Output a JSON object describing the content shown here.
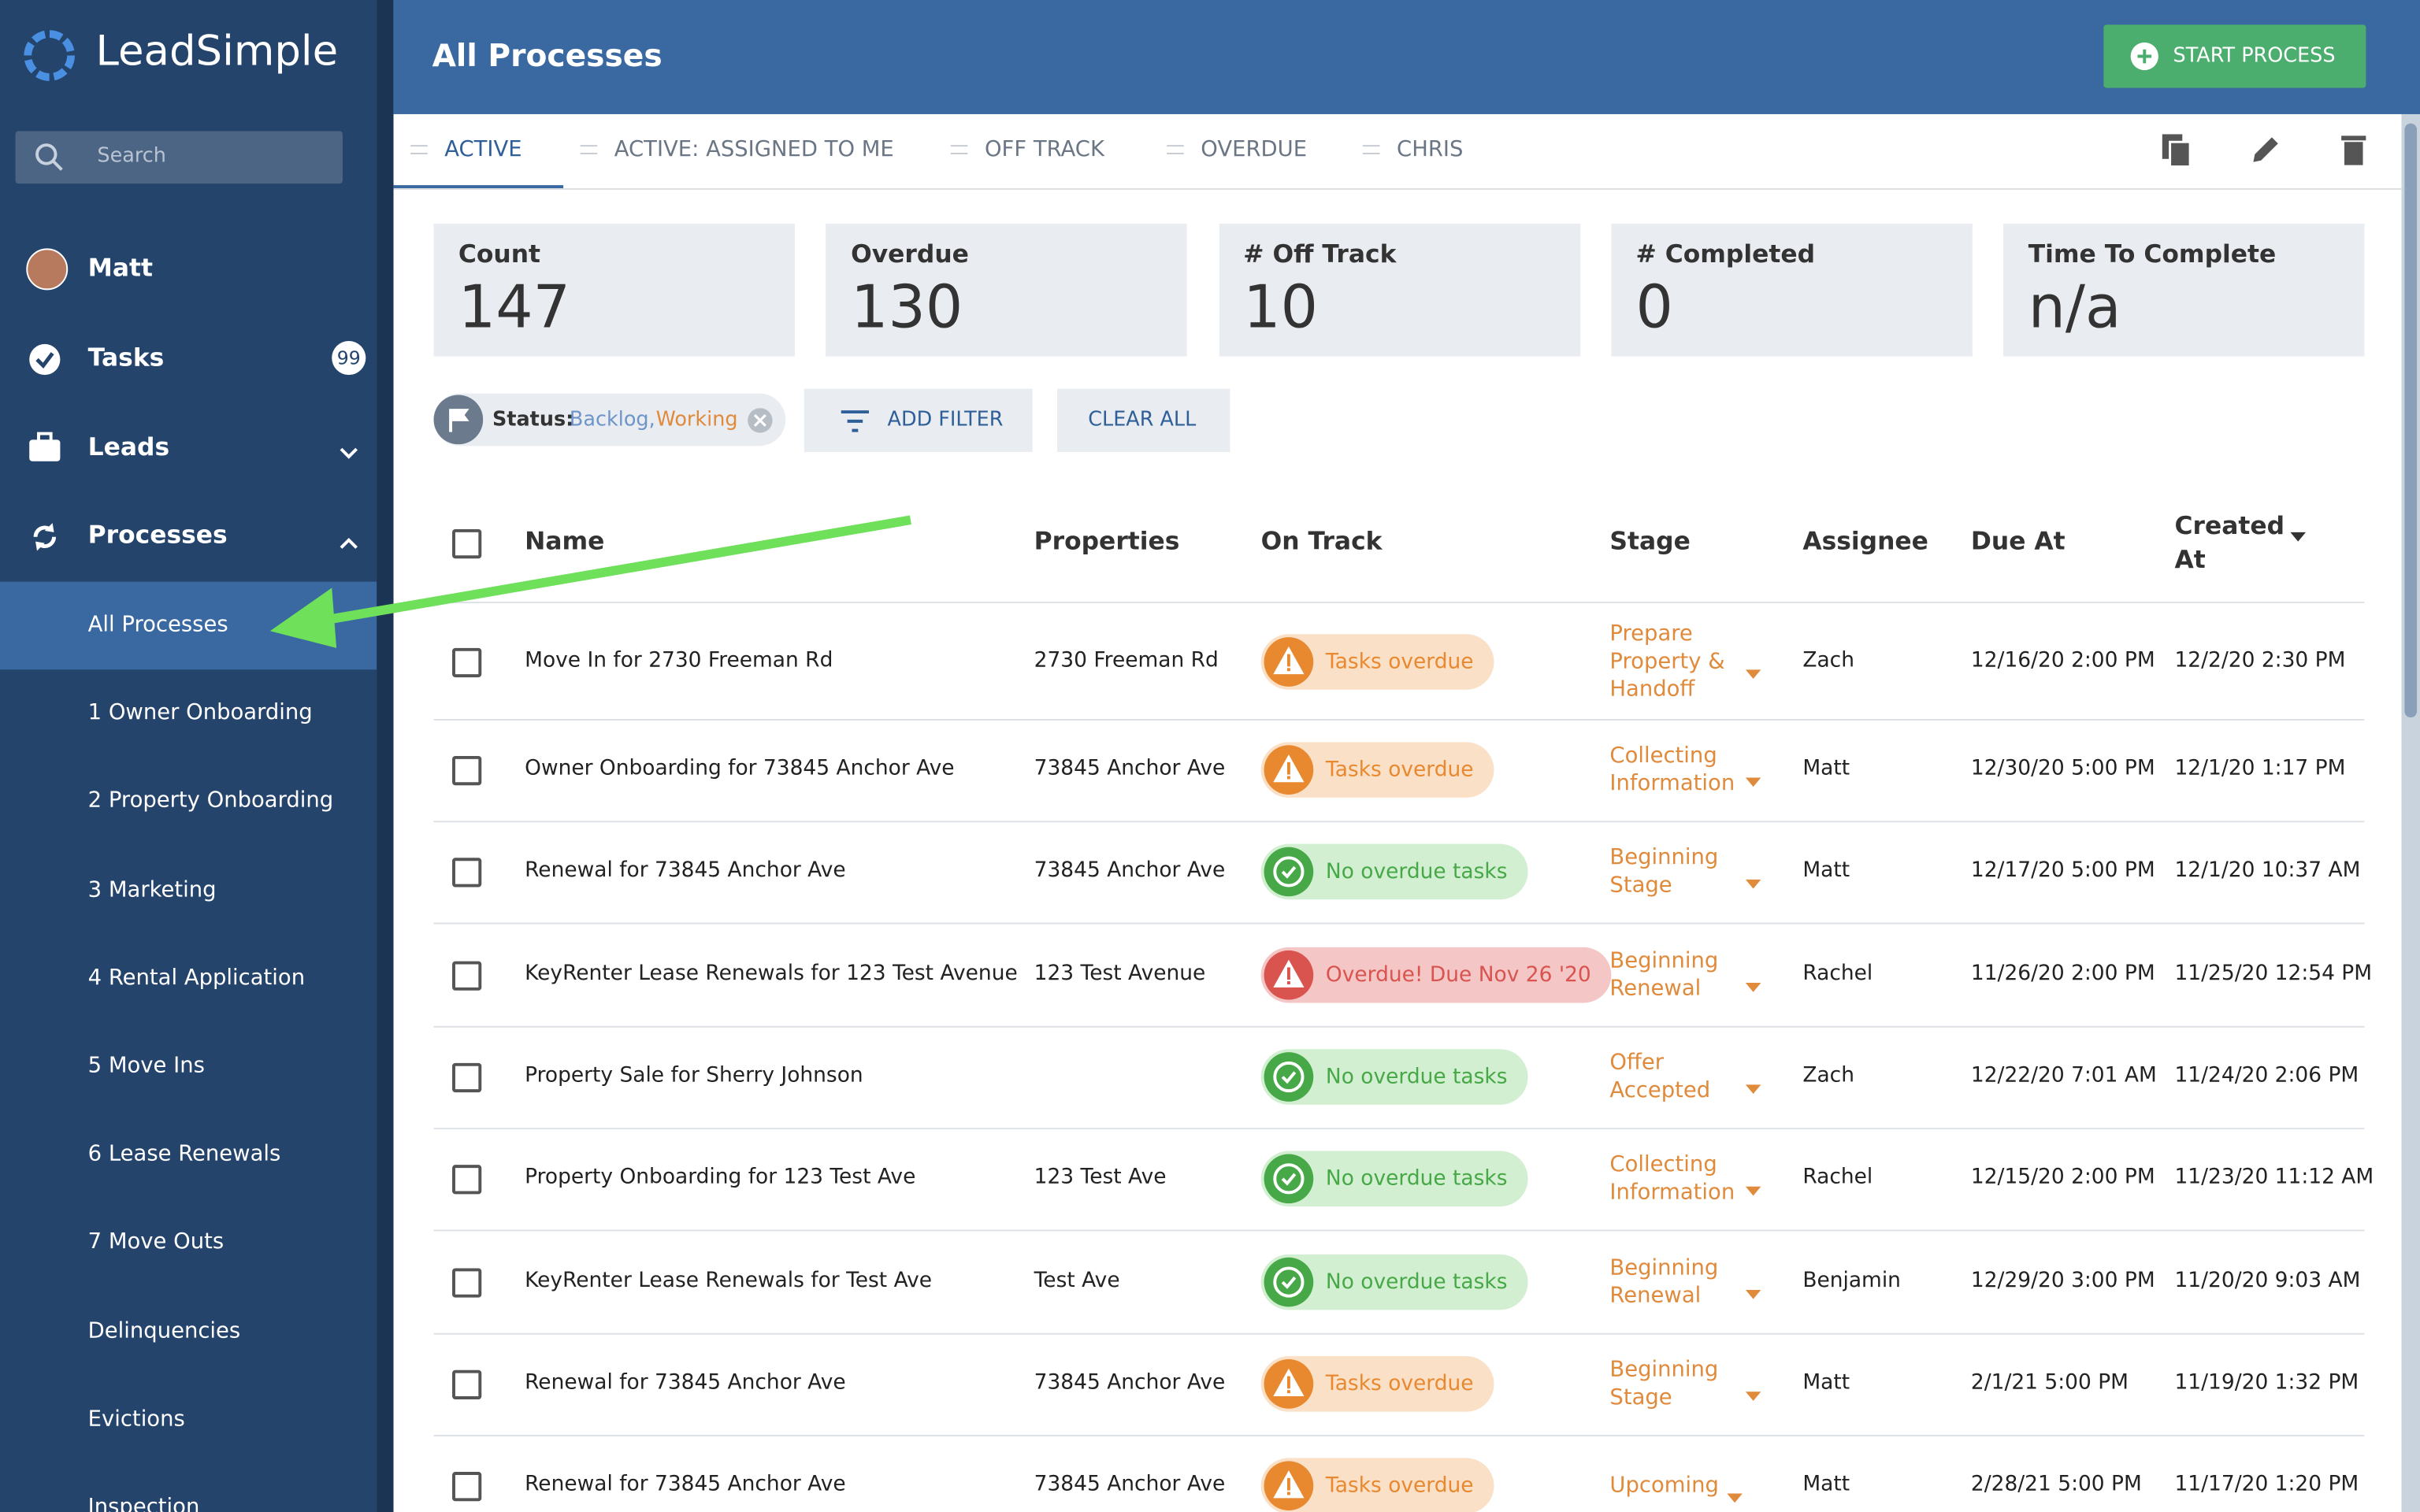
{
  "sidebar": {
    "brand": "LeadSimple",
    "search_placeholder": "Search",
    "user": "Matt",
    "nav": [
      {
        "label": "Tasks",
        "badge": 99
      },
      {
        "label": "Leads"
      },
      {
        "label": "Processes"
      }
    ],
    "subnav": [
      "All Processes",
      "1 Owner Onboarding",
      "2 Property Onboarding",
      "3 Marketing",
      "4 Rental Application",
      "5 Move Ins",
      "6 Lease Renewals",
      "7 Move Outs",
      "Delinquencies",
      "Evictions",
      "Inspection"
    ]
  },
  "header": {
    "title": "All Processes",
    "start_button": "START PROCESS"
  },
  "tabs": [
    "ACTIVE",
    "ACTIVE: ASSIGNED TO ME",
    "OFF TRACK",
    "OVERDUE",
    "CHRIS"
  ],
  "stats": [
    {
      "label": "Count",
      "value": 147
    },
    {
      "label": "Overdue",
      "value": 130
    },
    {
      "label": "# Off Track",
      "value": 10
    },
    {
      "label": "# Completed",
      "value": 0
    },
    {
      "label": "Time To Complete",
      "value": "n/a"
    }
  ],
  "filters": {
    "status_label": "Status:",
    "status_values": [
      "Backlog,",
      "Working"
    ],
    "add_filter": "ADD FILTER",
    "clear_all": "CLEAR ALL"
  },
  "table": {
    "columns": [
      "Name",
      "Properties",
      "On Track",
      "Stage",
      "Assignee",
      "Due At",
      "Created At"
    ],
    "rows": [
      {
        "name": "Move In for 2730 Freeman Rd",
        "property": "2730 Freeman Rd",
        "on_track": "Tasks overdue",
        "status": "warning",
        "stage": "Prepare Property & Handoff",
        "assignee": "Zach",
        "due": "12/16/20 2:00 PM",
        "created": "12/2/20 2:30 PM"
      },
      {
        "name": "Owner Onboarding for 73845 Anchor Ave",
        "property": "73845 Anchor Ave",
        "on_track": "Tasks overdue",
        "status": "warning",
        "stage": "Collecting Information",
        "assignee": "Matt",
        "due": "12/30/20 5:00 PM",
        "created": "12/1/20 1:17 PM"
      },
      {
        "name": "Renewal for 73845 Anchor Ave",
        "property": "73845 Anchor Ave",
        "on_track": "No overdue tasks",
        "status": "ok",
        "stage": "Beginning Stage",
        "assignee": "Matt",
        "due": "12/17/20 5:00 PM",
        "created": "12/1/20 10:37 AM"
      },
      {
        "name": "KeyRenter Lease Renewals for 123 Test Avenue",
        "property": "123 Test Avenue",
        "on_track": "Overdue! Due Nov 26 '20",
        "status": "overdue",
        "stage": "Beginning Renewal",
        "assignee": "Rachel",
        "due": "11/26/20 2:00 PM",
        "created": "11/25/20 12:54 PM"
      },
      {
        "name": "Property Sale for Sherry Johnson",
        "property": null,
        "on_track": "No overdue tasks",
        "status": "ok",
        "stage": "Offer Accepted",
        "assignee": "Zach",
        "due": "12/22/20 7:01 AM",
        "created": "11/24/20 2:06 PM"
      },
      {
        "name": "Property Onboarding for 123 Test Ave",
        "property": "123 Test Ave",
        "on_track": "No overdue tasks",
        "status": "ok",
        "stage": "Collecting Information",
        "assignee": "Rachel",
        "due": "12/15/20 2:00 PM",
        "created": "11/23/20 11:12 AM"
      },
      {
        "name": "KeyRenter Lease Renewals for Test Ave",
        "property": "Test Ave",
        "on_track": "No overdue tasks",
        "status": "ok",
        "stage": "Beginning Renewal",
        "assignee": "Benjamin",
        "due": "12/29/20 3:00 PM",
        "created": "11/20/20 9:03 AM"
      },
      {
        "name": "Renewal for 73845 Anchor Ave",
        "property": "73845 Anchor Ave",
        "on_track": "Tasks overdue",
        "status": "warning",
        "stage": "Beginning Stage",
        "assignee": "Matt",
        "due": "2/1/21 5:00 PM",
        "created": "11/19/20 1:32 PM"
      },
      {
        "name": "Renewal for 73845 Anchor Ave",
        "property": "73845 Anchor Ave",
        "on_track": "Tasks overdue",
        "status": "warning",
        "stage": "Upcoming",
        "assignee": "Matt",
        "due": "2/28/21 5:00 PM",
        "created": "11/17/20 1:20 PM"
      }
    ]
  }
}
